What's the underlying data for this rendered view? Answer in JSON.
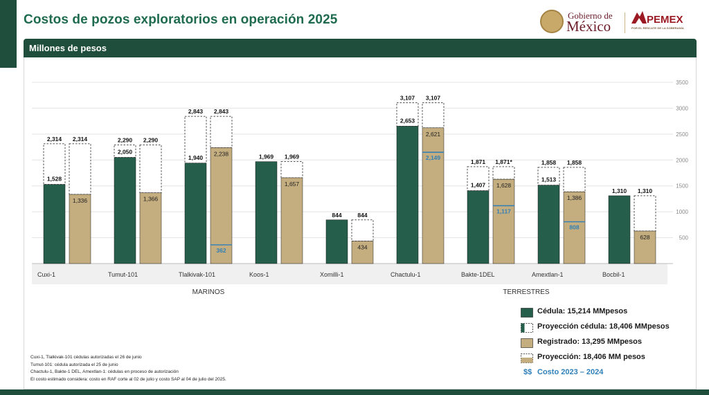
{
  "header": {
    "title": "Costos de pozos exploratorios en operación 2025",
    "gob_line1": "Gobierno de",
    "gob_line2": "México",
    "pemex_name": "PEMEX",
    "pemex_tagline": "POR EL RESCATE DE LA SOBERANÍA"
  },
  "panel": {
    "title": "Millones de pesos"
  },
  "colors": {
    "cedula": "#255e4b",
    "registrado": "#c4ad7f",
    "blue": "#2f7fb8",
    "dark_green": "#1f4e3d",
    "title_green": "#1f6b4f"
  },
  "chart_data": {
    "type": "bar",
    "title": "",
    "ylabel": "",
    "xlabel": "",
    "ylim": [
      0,
      3500
    ],
    "yticks": [
      "500",
      "1000",
      "1500",
      "2000",
      "2500",
      "3000",
      "3500"
    ],
    "grid": true,
    "categories": [
      "Cuxi-1",
      "Tumut-101",
      "Tlalkivak-101",
      "Koos-1",
      "Xomilli-1",
      "Chactulu-1",
      "Bakte-1DEL",
      "Amextlan-1",
      "Bocbil-1"
    ],
    "groups": [
      {
        "label": "MARINOS",
        "categories": [
          "Cuxi-1",
          "Tumut-101",
          "Tlalkivak-101",
          "Koos-1",
          "Xomilli-1"
        ]
      },
      {
        "label": "TERRESTRES",
        "categories": [
          "Chactulu-1",
          "Bakte-1DEL",
          "Amextlan-1",
          "Bocbil-1"
        ]
      }
    ],
    "series": [
      {
        "name": "Cédula: 15,214 MMpesos",
        "values": [
          1528,
          2050,
          1940,
          1969,
          844,
          2653,
          1407,
          1513,
          1310
        ]
      },
      {
        "name": "Proyección cédula: 18,406 MMpesos",
        "values": [
          2314,
          2290,
          2843,
          1969,
          844,
          3107,
          1871,
          1858,
          1310
        ]
      },
      {
        "name": "Registrado: 13,295 MMpesos",
        "values": [
          1336,
          1366,
          2238,
          1657,
          434,
          2621,
          1628,
          1386,
          628
        ]
      },
      {
        "name": "Proyección: 18,406 MM pesos",
        "values": [
          2314,
          2290,
          2843,
          1969,
          844,
          3107,
          1871,
          1858,
          1310
        ]
      },
      {
        "name": "Costo 2023 – 2024",
        "values": [
          null,
          null,
          362,
          null,
          null,
          2149,
          1117,
          808,
          null
        ]
      }
    ],
    "value_labels": {
      "cedula": [
        "1,528",
        "2,050",
        "1,940",
        "1,969",
        "844",
        "2,653",
        "1,407",
        "1,513",
        "1,310"
      ],
      "cedula_proj": [
        "2,314",
        "2,290",
        "2,843",
        "",
        "",
        "3,107",
        "1,871",
        "1,858",
        ""
      ],
      "registrado": [
        "1,336",
        "1,366",
        "2,238",
        "1,657",
        "434",
        "2,621",
        "1,628",
        "1,386",
        "628"
      ],
      "registrado_proj": [
        "2,314",
        "2,290",
        "2,843",
        "1,969",
        "844",
        "3,107",
        "1,871*",
        "1,858",
        "1,310"
      ],
      "costo": [
        "",
        "",
        "362",
        "",
        "",
        "2,149",
        "1,117",
        "808",
        ""
      ]
    }
  },
  "legend": {
    "cedula": "Cédula: 15,214 MMpesos",
    "proy_cedula": "Proyección cédula: 18,406 MMpesos",
    "registrado": "Registrado: 13,295 MMpesos",
    "proyeccion": "Proyección: 18,406 MM pesos",
    "costo_symbol": "$$",
    "costo": "Costo 2023 – 2024"
  },
  "notes": [
    "Cuxi-1, Tlalkivak-101 cédulas autorizadas el 26 de junio",
    "Tumut-101: cédula autorizada el 25 de junio",
    "Chactulu-1, Bakte-1 DEL, Amextlan-1: cédulas en proceso de autorización",
    " El costo estimado considera: costo en RAF corte al 02 de julio y costo SAP al 04 de julio del 2025."
  ]
}
